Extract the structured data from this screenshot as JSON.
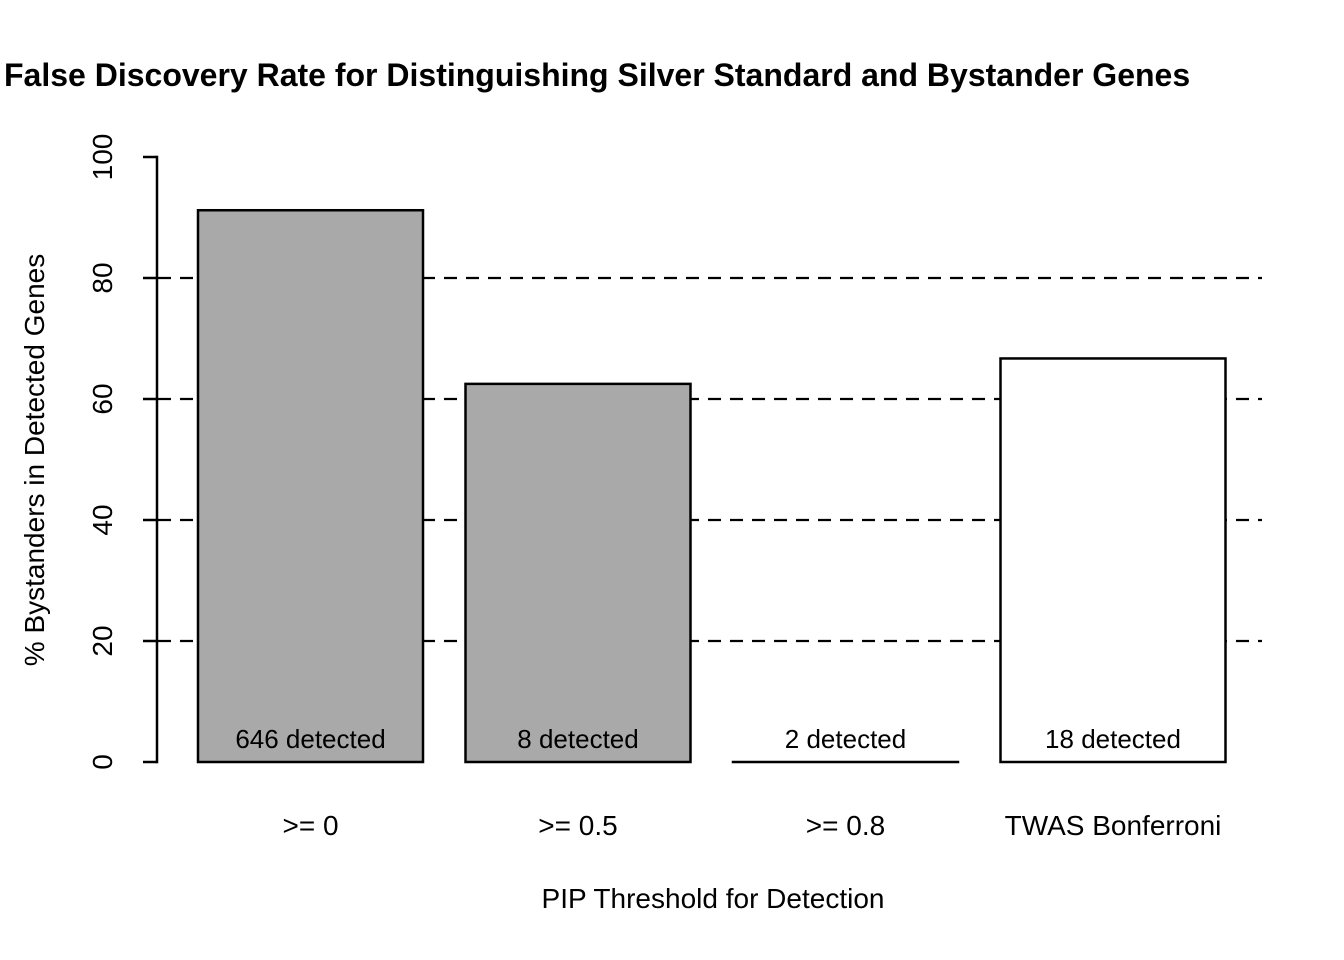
{
  "title": "False Discovery Rate for Distinguishing Silver Standard and Bystander Genes",
  "chart_data": {
    "type": "bar",
    "title": "False Discovery Rate for Distinguishing Silver Standard and Bystander Genes",
    "xlabel": "PIP Threshold for Detection",
    "ylabel": "% Bystanders in Detected Genes",
    "categories": [
      ">= 0",
      ">= 0.5",
      ">= 0.8",
      "TWAS Bonferroni"
    ],
    "values": [
      91.2,
      62.5,
      0,
      66.7
    ],
    "bar_labels": [
      "646 detected",
      "8 detected",
      "2 detected",
      "18 detected"
    ],
    "bar_colors": [
      "#a9a9a9",
      "#a9a9a9",
      "#a9a9a9",
      "#ffffff"
    ],
    "ylim": [
      0,
      100
    ],
    "yticks": [
      0,
      20,
      40,
      60,
      80,
      100
    ],
    "gridlines": [
      20,
      40,
      60,
      80
    ],
    "grid_style": "dashed",
    "legend_position": "none",
    "bar_border_color": "#000000"
  },
  "colors": {
    "background": "#ffffff",
    "axis": "#000000",
    "gray_bar": "#a9a9a9",
    "white_bar": "#ffffff"
  }
}
